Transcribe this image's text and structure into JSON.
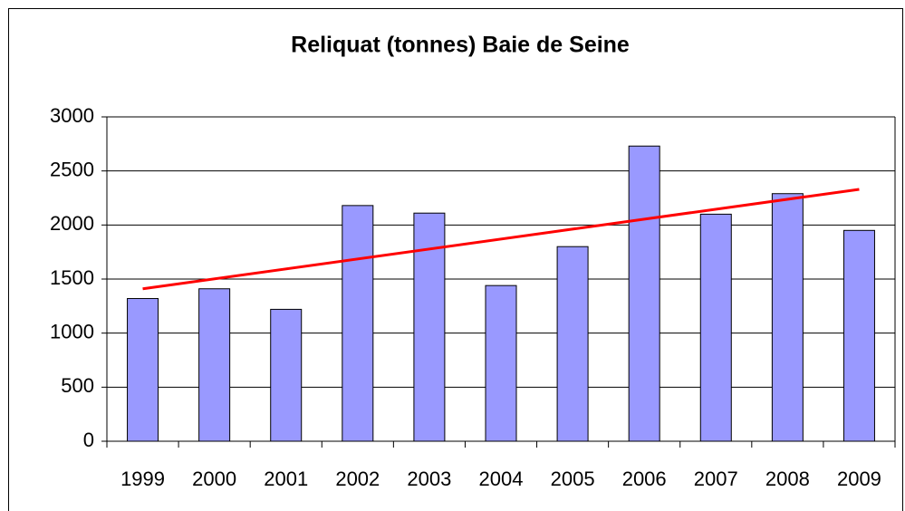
{
  "chart_data": {
    "type": "bar",
    "title": "Reliquat (tonnes) Baie de Seine",
    "categories": [
      "1999",
      "2000",
      "2001",
      "2002",
      "2003",
      "2004",
      "2005",
      "2006",
      "2007",
      "2008",
      "2009"
    ],
    "values": [
      1320,
      1410,
      1220,
      2180,
      2110,
      1440,
      1800,
      2730,
      2100,
      2290,
      1950
    ],
    "color": "#9999ff",
    "trendline": {
      "color": "#ff0000",
      "values": [
        1410,
        2330
      ]
    },
    "ylim": [
      0,
      3000
    ],
    "yticks": [
      0,
      500,
      1000,
      1500,
      2000,
      2500,
      3000
    ],
    "grid": true
  }
}
